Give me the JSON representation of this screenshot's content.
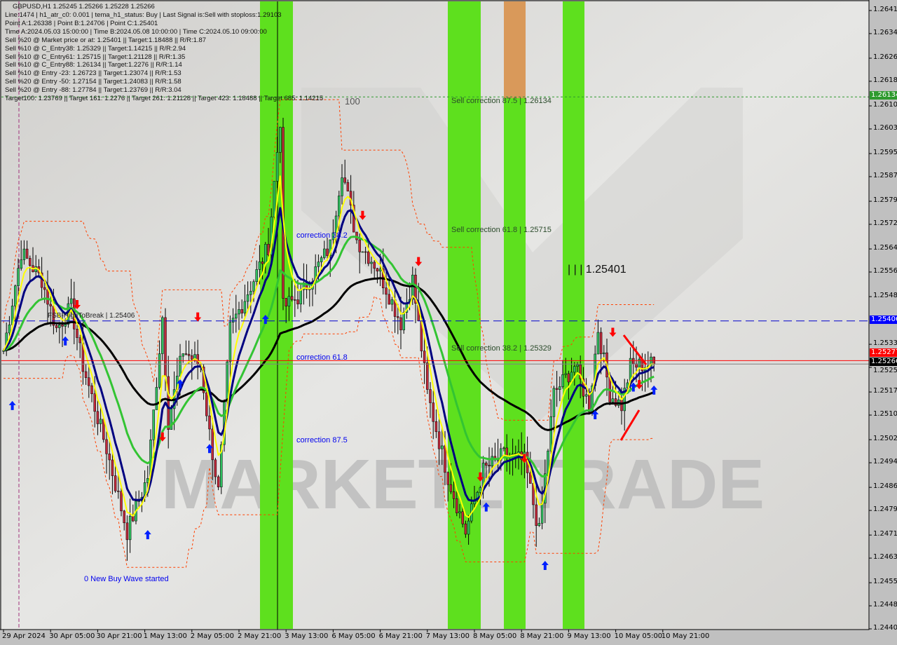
{
  "header": {
    "symbol_line": "GBPUSD,H1  1.25245 1.25266 1.25228 1.25266",
    "info_lines": [
      "Line:1474 | h1_atr_c0: 0.001 | tema_h1_status: Buy | Last Signal is:Sell with stoploss:1.29103",
      "Point A:1.26338 | Point B:1.24706 | Point C:1.25401",
      "Time A:2024.05.03 15:00:00 | Time B:2024.05.08 10:00:00 | Time C:2024.05.10 09:00:00",
      "Sell %20 @ Market price or at: 1.25401 || Target:1.18488 || R/R:1.87",
      "Sell %10 @ C_Entry38: 1.25329 || Target:1.14215 || R/R:2.94",
      "Sell %10 @ C_Entry61: 1.25715 || Target:1.21128 || R/R:1.35",
      "Sell %10 @ C_Entry88: 1.26134 || Target:1.2276 || R/R:1.14",
      "Sell %10 @ Entry -23: 1.26723 || Target:1.23074 || R/R:1.53",
      "Sell %20 @ Entry -50: 1.27154 || Target:1.24083 || R/R:1.58",
      "Sell %20 @ Entry -88: 1.27784 || Target:1.23769 || R/R:3.04",
      "Target100: 1.23769 || Target 161: 1.2276 || Target 261: 1.21128 || Target 423: 1.18488 || Target 685: 1.14215"
    ]
  },
  "labels": {
    "sell_corr_875": "Sell correction 87.5 | 1.26134",
    "sell_corr_618": "Sell correction 61.8 | 1.25715",
    "sell_corr_382": "Sell correction 38.2 | 1.25329",
    "point_c": "| | | 1.25401",
    "corr_382": "correction 38.2",
    "corr_618": "correction 61.8",
    "corr_875": "correction 87.5",
    "fsb": "FSB-HighToBreak | 1.25406",
    "buy_wave": "0 New Buy Wave started",
    "hundred": "100",
    "watermark": "MARKETZITRADE"
  },
  "price_tags": {
    "green": "1.26134",
    "blue": "1.25406",
    "red": "1.25277",
    "current": "1.25266"
  },
  "colors": {
    "background": "#d9d8d5",
    "bull_candle": "#2fbf5f",
    "bear_candle": "#c0283a",
    "band_green": "#5ee01e",
    "band_orange": "#d9995a",
    "ma_fast": "#ffff00",
    "ma_mid": "#000080",
    "ma_slow": "#33c433",
    "ma_long": "#000000",
    "channel": "#ff4000",
    "buy_arrow": "#0020ff",
    "sell_arrow": "#ff0000"
  },
  "chart_data": {
    "type": "candlestick",
    "symbol": "GBPUSD",
    "timeframe": "H1",
    "ylim": [
      1.24405,
      1.26415
    ],
    "y_ticks": [
      "1.26415",
      "1.26340",
      "1.26260",
      "1.26185",
      "1.26105",
      "1.26030",
      "1.25950",
      "1.25875",
      "1.25795",
      "1.25720",
      "1.25640",
      "1.25565",
      "1.25485",
      "1.25330",
      "1.25255",
      "1.25175",
      "1.25100",
      "1.25020",
      "1.24945",
      "1.24865",
      "1.24790",
      "1.24710",
      "1.24635",
      "1.24555",
      "1.24480",
      "1.24405"
    ],
    "x_ticks": [
      "29 Apr 2024",
      "30 Apr 05:00",
      "30 Apr 21:00",
      "1 May 13:00",
      "2 May 05:00",
      "2 May 21:00",
      "3 May 13:00",
      "6 May 05:00",
      "6 May 21:00",
      "7 May 13:00",
      "8 May 05:00",
      "8 May 21:00",
      "9 May 13:00",
      "10 May 05:00",
      "10 May 21:00"
    ],
    "levels": {
      "sell_correction_87_5": 1.26134,
      "fsb_high_to_break": 1.25406,
      "red_line": 1.25277,
      "current_price": 1.25266
    },
    "price_path": [
      {
        "t": "2024-04-29 13:00",
        "p": 1.2531
      },
      {
        "t": "2024-04-29 19:00",
        "p": 1.2563
      },
      {
        "t": "2024-04-30 02:00",
        "p": 1.2554
      },
      {
        "t": "2024-04-30 07:00",
        "p": 1.2538
      },
      {
        "t": "2024-04-30 12:00",
        "p": 1.2545
      },
      {
        "t": "2024-04-30 16:00",
        "p": 1.2526
      },
      {
        "t": "2024-05-01 00:00",
        "p": 1.2499
      },
      {
        "t": "2024-05-01 07:00",
        "p": 1.2472
      },
      {
        "t": "2024-05-01 14:00",
        "p": 1.249
      },
      {
        "t": "2024-05-01 19:00",
        "p": 1.2542
      },
      {
        "t": "2024-05-01 21:00",
        "p": 1.2508
      },
      {
        "t": "2024-05-02 02:00",
        "p": 1.2531
      },
      {
        "t": "2024-05-02 08:00",
        "p": 1.2526
      },
      {
        "t": "2024-05-02 11:00",
        "p": 1.2504
      },
      {
        "t": "2024-05-02 14:00",
        "p": 1.2485
      },
      {
        "t": "2024-05-02 18:00",
        "p": 1.2538
      },
      {
        "t": "2024-05-03 02:00",
        "p": 1.2554
      },
      {
        "t": "2024-05-03 07:00",
        "p": 1.2565
      },
      {
        "t": "2024-05-03 11:00",
        "p": 1.2606
      },
      {
        "t": "2024-05-03 12:00",
        "p": 1.2545
      },
      {
        "t": "2024-05-03 18:00",
        "p": 1.2549
      },
      {
        "t": "2024-05-06 04:00",
        "p": 1.2565
      },
      {
        "t": "2024-05-06 08:00",
        "p": 1.259
      },
      {
        "t": "2024-05-06 13:00",
        "p": 1.2567
      },
      {
        "t": "2024-05-06 20:00",
        "p": 1.2558
      },
      {
        "t": "2024-05-07 04:00",
        "p": 1.254
      },
      {
        "t": "2024-05-07 08:00",
        "p": 1.2554
      },
      {
        "t": "2024-05-07 13:00",
        "p": 1.2517
      },
      {
        "t": "2024-05-07 20:00",
        "p": 1.249
      },
      {
        "t": "2024-05-08 02:00",
        "p": 1.2472
      },
      {
        "t": "2024-05-08 08:00",
        "p": 1.2492
      },
      {
        "t": "2024-05-08 15:00",
        "p": 1.2497
      },
      {
        "t": "2024-05-08 22:00",
        "p": 1.2495
      },
      {
        "t": "2024-05-09 03:00",
        "p": 1.2472
      },
      {
        "t": "2024-05-09 08:00",
        "p": 1.2517
      },
      {
        "t": "2024-05-09 15:00",
        "p": 1.2526
      },
      {
        "t": "2024-05-09 20:00",
        "p": 1.2513
      },
      {
        "t": "2024-05-09 23:00",
        "p": 1.2538
      },
      {
        "t": "2024-05-10 03:00",
        "p": 1.2517
      },
      {
        "t": "2024-05-10 07:00",
        "p": 1.2513
      },
      {
        "t": "2024-05-10 10:00",
        "p": 1.2526
      },
      {
        "t": "2024-05-10 18:00",
        "p": 1.25266
      }
    ],
    "buy_signals": [
      {
        "t": "2024-04-29 16:00",
        "p": 1.2513
      },
      {
        "t": "2024-04-30 10:00",
        "p": 1.2534
      },
      {
        "t": "2024-05-01 14:00",
        "p": 1.2471
      },
      {
        "t": "2024-05-02 01:00",
        "p": 1.252
      },
      {
        "t": "2024-05-02 11:00",
        "p": 1.2499
      },
      {
        "t": "2024-05-03 06:00",
        "p": 1.2541
      },
      {
        "t": "2024-05-08 09:00",
        "p": 1.248
      },
      {
        "t": "2024-05-09 05:00",
        "p": 1.2461
      },
      {
        "t": "2024-05-09 22:00",
        "p": 1.251
      },
      {
        "t": "2024-05-10 11:00",
        "p": 1.2519
      },
      {
        "t": "2024-05-10 18:00",
        "p": 1.2518
      }
    ],
    "sell_signals": [
      {
        "t": "2024-04-30 14:00",
        "p": 1.2546
      },
      {
        "t": "2024-05-01 19:00",
        "p": 1.2503
      },
      {
        "t": "2024-05-02 07:00",
        "p": 1.2542
      },
      {
        "t": "2024-05-06 15:00",
        "p": 1.2575
      },
      {
        "t": "2024-05-07 10:00",
        "p": 1.256
      },
      {
        "t": "2024-05-08 07:00",
        "p": 1.249
      },
      {
        "t": "2024-05-08 22:00",
        "p": 1.2496
      },
      {
        "t": "2024-05-10 04:00",
        "p": 1.2537
      },
      {
        "t": "2024-05-10 13:00",
        "p": 1.252
      }
    ]
  }
}
